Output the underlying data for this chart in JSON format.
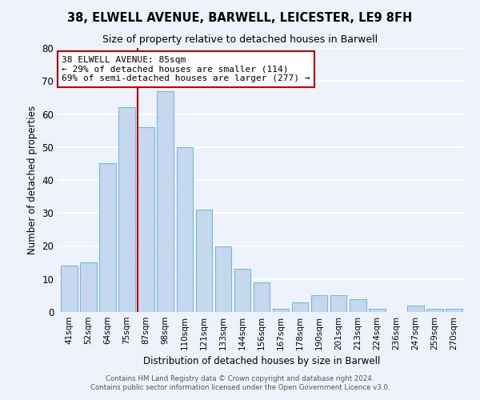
{
  "title": "38, ELWELL AVENUE, BARWELL, LEICESTER, LE9 8FH",
  "subtitle": "Size of property relative to detached houses in Barwell",
  "xlabel": "Distribution of detached houses by size in Barwell",
  "ylabel": "Number of detached properties",
  "categories": [
    "41sqm",
    "52sqm",
    "64sqm",
    "75sqm",
    "87sqm",
    "98sqm",
    "110sqm",
    "121sqm",
    "133sqm",
    "144sqm",
    "156sqm",
    "167sqm",
    "178sqm",
    "190sqm",
    "201sqm",
    "213sqm",
    "224sqm",
    "236sqm",
    "247sqm",
    "259sqm",
    "270sqm"
  ],
  "values": [
    14,
    15,
    45,
    62,
    56,
    67,
    50,
    31,
    20,
    13,
    9,
    1,
    3,
    5,
    5,
    4,
    1,
    0,
    2,
    1,
    1
  ],
  "bar_color": "#c5d8f0",
  "bar_edge_color": "#7ab8d8",
  "ylim": [
    0,
    80
  ],
  "yticks": [
    0,
    10,
    20,
    30,
    40,
    50,
    60,
    70,
    80
  ],
  "red_line_index": 4,
  "red_line_color": "#cc0000",
  "annotation_line1": "38 ELWELL AVENUE: 85sqm",
  "annotation_line2": "← 29% of detached houses are smaller (114)",
  "annotation_line3": "69% of semi-detached houses are larger (277) →",
  "background_color": "#eef2fc",
  "grid_color": "#ffffff",
  "footer_line1": "Contains HM Land Registry data © Crown copyright and database right 2024.",
  "footer_line2": "Contains public sector information licensed under the Open Government Licence v3.0."
}
